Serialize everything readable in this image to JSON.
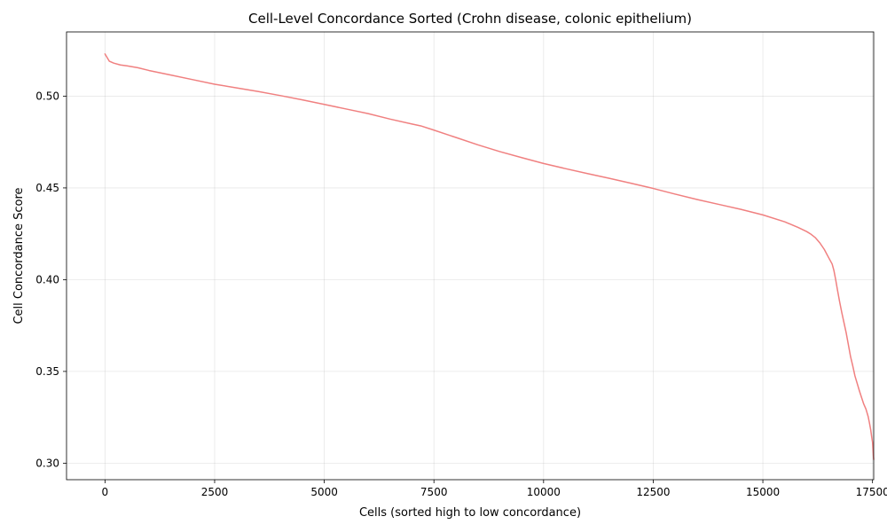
{
  "chart_data": {
    "type": "line",
    "title": "Cell-Level Concordance Sorted (Crohn disease, colonic epithelium)",
    "xlabel": "Cells (sorted high to low concordance)",
    "ylabel": "Cell Concordance Score",
    "xlim": [
      -877,
      17527
    ],
    "ylim": [
      0.291,
      0.535
    ],
    "xticks": [
      {
        "value": 0,
        "label": "0"
      },
      {
        "value": 2500,
        "label": "2500"
      },
      {
        "value": 5000,
        "label": "5000"
      },
      {
        "value": 7500,
        "label": "7500"
      },
      {
        "value": 10000,
        "label": "10000"
      },
      {
        "value": 12500,
        "label": "12500"
      },
      {
        "value": 15000,
        "label": "15000"
      },
      {
        "value": 17500,
        "label": "17500"
      }
    ],
    "yticks": [
      {
        "value": 0.3,
        "label": "0.30"
      },
      {
        "value": 0.35,
        "label": "0.35"
      },
      {
        "value": 0.4,
        "label": "0.40"
      },
      {
        "value": 0.45,
        "label": "0.45"
      },
      {
        "value": 0.5,
        "label": "0.50"
      }
    ],
    "grid": true,
    "series": [
      {
        "color": "#f08080",
        "x": [
          0,
          50,
          100,
          200,
          350,
          500,
          750,
          1000,
          1500,
          2000,
          2500,
          3000,
          3500,
          4000,
          4500,
          5000,
          5500,
          6000,
          6500,
          7000,
          7200,
          7500,
          8000,
          8500,
          9000,
          9500,
          10000,
          10500,
          11000,
          11500,
          12000,
          12500,
          13000,
          13500,
          14000,
          14500,
          15000,
          15500,
          15800,
          16000,
          16100,
          16200,
          16300,
          16400,
          16500,
          16580,
          16620,
          16660,
          16700,
          16750,
          16800,
          16850,
          16900,
          16950,
          17000,
          17050,
          17100,
          17150,
          17200,
          17250,
          17300,
          17350,
          17400,
          17430,
          17460,
          17480,
          17500,
          17510,
          17520,
          17527
        ],
        "y": [
          0.523,
          0.521,
          0.519,
          0.518,
          0.517,
          0.5165,
          0.5155,
          0.514,
          0.5115,
          0.509,
          0.5065,
          0.5045,
          0.5025,
          0.5003,
          0.498,
          0.4955,
          0.493,
          0.4905,
          0.4875,
          0.4848,
          0.4838,
          0.4815,
          0.4775,
          0.4735,
          0.4698,
          0.4665,
          0.4633,
          0.4605,
          0.4578,
          0.4552,
          0.4525,
          0.4497,
          0.4466,
          0.4437,
          0.441,
          0.4383,
          0.4353,
          0.4315,
          0.4285,
          0.4262,
          0.4247,
          0.4228,
          0.42,
          0.4165,
          0.412,
          0.4085,
          0.405,
          0.4,
          0.3945,
          0.388,
          0.382,
          0.3765,
          0.371,
          0.3645,
          0.358,
          0.353,
          0.3475,
          0.3435,
          0.3395,
          0.3358,
          0.3322,
          0.3295,
          0.3255,
          0.322,
          0.318,
          0.3145,
          0.3115,
          0.308,
          0.304,
          0.302
        ]
      }
    ]
  }
}
